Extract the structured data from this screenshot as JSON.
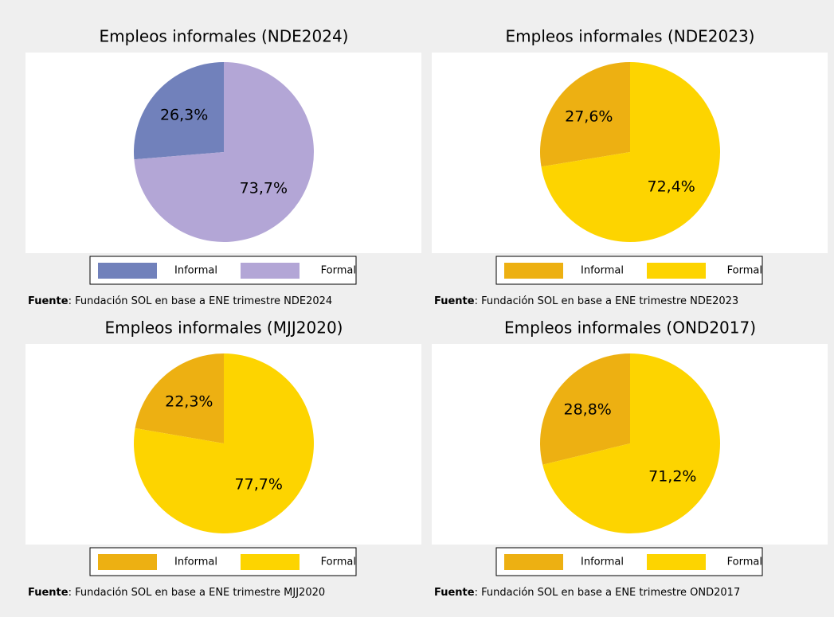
{
  "chart_data": [
    {
      "type": "pie",
      "title": "Empleos informales (NDE2024)",
      "categories": [
        "Informal",
        "Formal"
      ],
      "values": [
        26.3,
        73.7
      ],
      "value_labels": [
        "26,3%",
        "73,7%"
      ],
      "colors": [
        "#7181bb",
        "#b3a6d6"
      ],
      "source_label": "Fuente",
      "source_text": ": Fundación SOL en base a ENE trimestre NDE2024"
    },
    {
      "type": "pie",
      "title": "Empleos informales (NDE2023)",
      "categories": [
        "Informal",
        "Formal"
      ],
      "values": [
        27.6,
        72.4
      ],
      "value_labels": [
        "27,6%",
        "72,4%"
      ],
      "colors": [
        "#edb012",
        "#fdd400"
      ],
      "source_label": "Fuente",
      "source_text": ": Fundación SOL en base a ENE trimestre NDE2023"
    },
    {
      "type": "pie",
      "title": "Empleos informales (MJJ2020)",
      "categories": [
        "Informal",
        "Formal"
      ],
      "values": [
        22.3,
        77.7
      ],
      "value_labels": [
        "22,3%",
        "77,7%"
      ],
      "colors": [
        "#edb012",
        "#fdd400"
      ],
      "source_label": "Fuente",
      "source_text": ": Fundación SOL en base a ENE trimestre MJJ2020"
    },
    {
      "type": "pie",
      "title": "Empleos informales (OND2017)",
      "categories": [
        "Informal",
        "Formal"
      ],
      "values": [
        28.8,
        71.2
      ],
      "value_labels": [
        "28,8%",
        "71,2%"
      ],
      "colors": [
        "#edb012",
        "#fdd400"
      ],
      "source_label": "Fuente",
      "source_text": ": Fundación SOL en base a ENE trimestre OND2017"
    }
  ]
}
